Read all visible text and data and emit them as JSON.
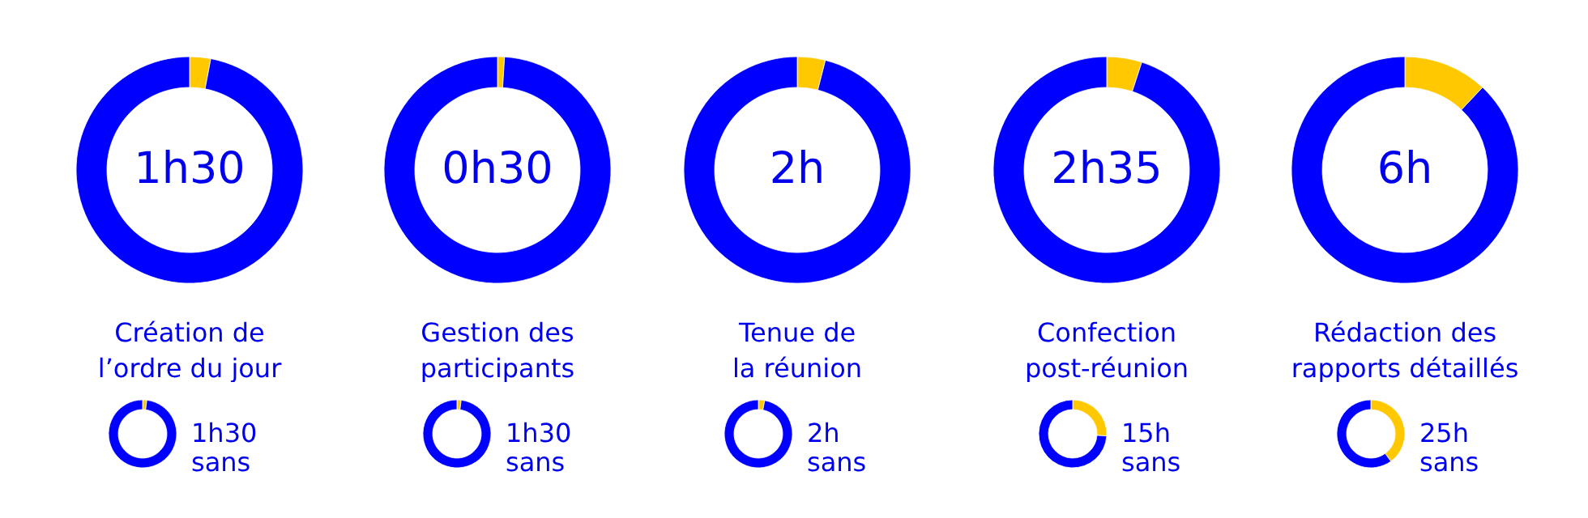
{
  "chart_data": [
    {
      "type": "donut",
      "title": "Création de l’ordre du jour",
      "annotations": [
        "1h30"
      ],
      "categories": [
        null,
        null
      ],
      "values": [
        3,
        97
      ],
      "colors": [
        "#ffc800",
        "#0000ff"
      ]
    },
    {
      "type": "donut",
      "title": "Gestion des participants",
      "annotations": [
        "0h30"
      ],
      "categories": [
        null,
        null
      ],
      "values": [
        1,
        99
      ],
      "colors": [
        "#ffc800",
        "#0000ff"
      ]
    },
    {
      "type": "donut",
      "title": "Tenue de la réunion",
      "annotations": [
        "2h"
      ],
      "categories": [
        null,
        null
      ],
      "values": [
        4,
        96
      ],
      "colors": [
        "#ffc800",
        "#0000ff"
      ]
    },
    {
      "type": "donut",
      "title": "Confection post-réunion",
      "annotations": [
        "2h35"
      ],
      "categories": [
        null,
        null
      ],
      "values": [
        5,
        95
      ],
      "colors": [
        "#ffc800",
        "#0000ff"
      ]
    },
    {
      "type": "donut",
      "title": "Rédaction des rapports détaillés",
      "annotations": [
        "6h"
      ],
      "categories": [
        null,
        null
      ],
      "values": [
        12,
        88
      ],
      "colors": [
        "#ffc800",
        "#0000ff"
      ]
    },
    {
      "type": "donut",
      "annotations": [
        "1h30 sans"
      ],
      "categories": [
        null,
        null
      ],
      "values": [
        2,
        98
      ],
      "colors": [
        "#ffc800",
        "#0000ff"
      ]
    },
    {
      "type": "donut",
      "annotations": [
        "1h30 sans"
      ],
      "categories": [
        null,
        null
      ],
      "values": [
        2,
        98
      ],
      "colors": [
        "#ffc800",
        "#0000ff"
      ]
    },
    {
      "type": "donut",
      "annotations": [
        "2h sans"
      ],
      "categories": [
        null,
        null
      ],
      "values": [
        3,
        97
      ],
      "colors": [
        "#ffc800",
        "#0000ff"
      ]
    },
    {
      "type": "donut",
      "annotations": [
        "15h sans"
      ],
      "categories": [
        null,
        null
      ],
      "values": [
        26,
        74
      ],
      "colors": [
        "#ffc800",
        "#0000ff"
      ]
    },
    {
      "type": "donut",
      "annotations": [
        "25h sans"
      ],
      "categories": [
        null,
        null
      ],
      "values": [
        40,
        60
      ],
      "colors": [
        "#ffc800",
        "#0000ff"
      ]
    }
  ]
}
